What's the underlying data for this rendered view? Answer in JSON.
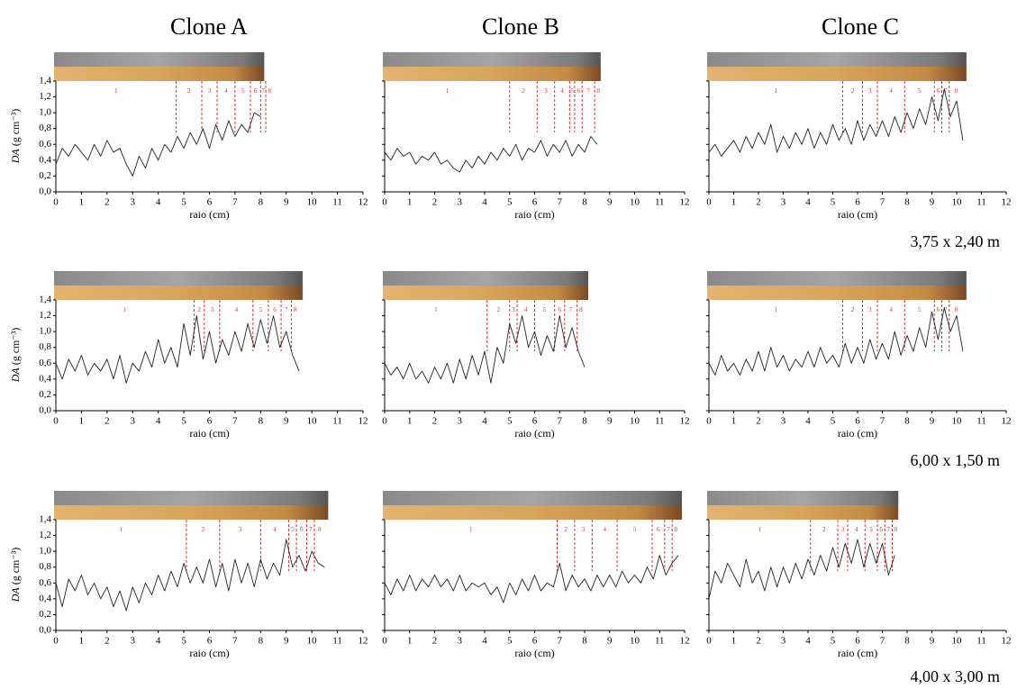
{
  "column_titles": [
    "Clone A",
    "Clone B",
    "Clone C"
  ],
  "row_labels": [
    "3,75 x 2,40 m",
    "6,00 x 1,50 m",
    "4,00 x 3,00 m"
  ],
  "chart_data": [
    {
      "type": "line",
      "xlabel": "raio (cm)",
      "ylabel_var": "DA",
      "ylabel_unit": "(g cm⁻³)",
      "color": "#222222",
      "ring_color": "#e03030",
      "xlim": [
        0,
        12
      ],
      "ylim": [
        0,
        1.4
      ],
      "xticks": [
        0,
        1,
        2,
        3,
        4,
        5,
        6,
        7,
        8,
        9,
        10,
        11,
        12
      ],
      "yticks": [
        {
          "value": 0,
          "label": "0,0"
        },
        {
          "value": 0.2,
          "label": "0,2"
        },
        {
          "value": 0.4,
          "label": "0,4"
        },
        {
          "value": 0.6,
          "label": "0,6"
        },
        {
          "value": 0.8,
          "label": "0,8"
        },
        {
          "value": 1,
          "label": "1,0"
        },
        {
          "value": 1.2,
          "label": "1,2"
        },
        {
          "value": 1.4,
          "label": "1,4"
        }
      ],
      "x": [
        0,
        0.25,
        0.5,
        0.75,
        1,
        1.25,
        1.5,
        1.75,
        2,
        2.25,
        2.5,
        2.75,
        3,
        3.25,
        3.5,
        3.75,
        4,
        4.25,
        4.5,
        4.75,
        5,
        5.25,
        5.5,
        5.75,
        6,
        6.25,
        6.5,
        6.75,
        7,
        7.25,
        7.5,
        7.75,
        8
      ],
      "values": [
        0.35,
        0.55,
        0.45,
        0.6,
        0.5,
        0.4,
        0.6,
        0.45,
        0.65,
        0.5,
        0.55,
        0.35,
        0.2,
        0.45,
        0.3,
        0.55,
        0.4,
        0.6,
        0.5,
        0.7,
        0.55,
        0.75,
        0.6,
        0.8,
        0.55,
        0.85,
        0.65,
        0.9,
        0.7,
        0.85,
        0.75,
        1.0,
        0.95
      ],
      "ring_labels": [
        "1",
        "2",
        "3",
        "4",
        "5",
        "6",
        "7",
        "8"
      ],
      "ring_boundaries": [
        4.7,
        5.7,
        6.3,
        7.0,
        7.6,
        8.0,
        8.2
      ]
    },
    {
      "type": "line",
      "xlabel": "raio (cm)",
      "color": "#222222",
      "ring_color": "#e03030",
      "xlim": [
        0,
        12
      ],
      "ylim": [
        0,
        1.4
      ],
      "xticks": [
        0,
        1,
        2,
        3,
        4,
        5,
        6,
        7,
        8,
        9,
        10,
        11,
        12
      ],
      "yticks": [
        0,
        0.2,
        0.4,
        0.6,
        0.8,
        1,
        1.2,
        1.4
      ],
      "x": [
        0,
        0.25,
        0.5,
        0.75,
        1,
        1.25,
        1.5,
        1.75,
        2,
        2.25,
        2.5,
        2.75,
        3,
        3.25,
        3.5,
        3.75,
        4,
        4.25,
        4.5,
        4.75,
        5,
        5.25,
        5.5,
        5.75,
        6,
        6.25,
        6.5,
        6.75,
        7,
        7.25,
        7.5,
        7.75,
        8,
        8.25,
        8.5
      ],
      "values": [
        0.5,
        0.4,
        0.55,
        0.45,
        0.5,
        0.35,
        0.45,
        0.4,
        0.5,
        0.35,
        0.4,
        0.3,
        0.25,
        0.4,
        0.3,
        0.45,
        0.35,
        0.5,
        0.4,
        0.55,
        0.45,
        0.6,
        0.4,
        0.55,
        0.5,
        0.65,
        0.45,
        0.6,
        0.5,
        0.65,
        0.45,
        0.6,
        0.5,
        0.7,
        0.6
      ],
      "ring_labels": [
        "1",
        "2",
        "3",
        "4",
        "5",
        "6",
        "7",
        "8"
      ],
      "ring_boundaries": [
        5.0,
        6.1,
        6.8,
        7.4,
        7.6,
        7.9,
        8.4
      ]
    },
    {
      "type": "line",
      "xlabel": "raio (cm)",
      "color": "#222222",
      "ring_color": "#e03030",
      "xlim": [
        0,
        12
      ],
      "ylim": [
        0,
        1.4
      ],
      "xticks": [
        0,
        1,
        2,
        3,
        4,
        5,
        6,
        7,
        8,
        9,
        10,
        11,
        12
      ],
      "yticks": [
        0,
        0.2,
        0.4,
        0.6,
        0.8,
        1,
        1.2,
        1.4
      ],
      "x": [
        0,
        0.25,
        0.5,
        0.75,
        1,
        1.25,
        1.5,
        1.75,
        2,
        2.25,
        2.5,
        2.75,
        3,
        3.25,
        3.5,
        3.75,
        4,
        4.25,
        4.5,
        4.75,
        5,
        5.25,
        5.5,
        5.75,
        6,
        6.25,
        6.5,
        6.75,
        7,
        7.25,
        7.5,
        7.75,
        8,
        8.25,
        8.5,
        8.75,
        9,
        9.25,
        9.5,
        9.75,
        10,
        10.25
      ],
      "values": [
        0.5,
        0.6,
        0.45,
        0.55,
        0.65,
        0.5,
        0.7,
        0.55,
        0.75,
        0.6,
        0.85,
        0.5,
        0.7,
        0.55,
        0.75,
        0.6,
        0.8,
        0.55,
        0.75,
        0.6,
        0.85,
        0.65,
        0.8,
        0.6,
        0.9,
        0.65,
        0.85,
        0.7,
        0.9,
        0.7,
        0.95,
        0.75,
        1.0,
        0.8,
        1.05,
        0.85,
        1.2,
        0.9,
        1.3,
        0.95,
        1.15,
        0.65
      ],
      "ring_labels": [
        "1",
        "2",
        "3",
        "4",
        "5",
        "6",
        "7",
        "8"
      ],
      "ring_boundaries": [
        5.4,
        6.2,
        6.8,
        7.9,
        9.1,
        9.4,
        9.7
      ]
    },
    {
      "type": "line",
      "xlabel": "raio (cm)",
      "ylabel_var": "DA",
      "ylabel_unit": "(g cm⁻³)",
      "color": "#222222",
      "ring_color": "#e03030",
      "xlim": [
        0,
        12
      ],
      "ylim": [
        0,
        1.4
      ],
      "xticks": [
        0,
        1,
        2,
        3,
        4,
        5,
        6,
        7,
        8,
        9,
        10,
        11,
        12
      ],
      "yticks": [
        {
          "value": 0,
          "label": "0,0"
        },
        {
          "value": 0.2,
          "label": "0,2"
        },
        {
          "value": 0.4,
          "label": "0,4"
        },
        {
          "value": 0.6,
          "label": "0,6"
        },
        {
          "value": 0.8,
          "label": "0,8"
        },
        {
          "value": 1,
          "label": "1,0"
        },
        {
          "value": 1.2,
          "label": "1,2"
        },
        {
          "value": 1.4,
          "label": "1,4"
        }
      ],
      "x": [
        0,
        0.25,
        0.5,
        0.75,
        1,
        1.25,
        1.5,
        1.75,
        2,
        2.25,
        2.5,
        2.75,
        3,
        3.25,
        3.5,
        3.75,
        4,
        4.25,
        4.5,
        4.75,
        5,
        5.25,
        5.5,
        5.75,
        6,
        6.25,
        6.5,
        6.75,
        7,
        7.25,
        7.5,
        7.75,
        8,
        8.25,
        8.5,
        8.75,
        9,
        9.25,
        9.5
      ],
      "values": [
        0.6,
        0.4,
        0.65,
        0.5,
        0.7,
        0.45,
        0.6,
        0.5,
        0.65,
        0.4,
        0.7,
        0.35,
        0.6,
        0.5,
        0.75,
        0.55,
        0.9,
        0.6,
        0.8,
        0.55,
        1.1,
        0.7,
        1.2,
        0.65,
        1.0,
        0.6,
        0.9,
        0.7,
        1.0,
        0.75,
        1.1,
        0.8,
        1.15,
        0.85,
        1.2,
        0.8,
        1.0,
        0.7,
        0.5
      ],
      "ring_labels": [
        "1",
        "2",
        "3",
        "4",
        "5",
        "6",
        "7",
        "8"
      ],
      "ring_boundaries": [
        5.4,
        5.8,
        6.4,
        7.7,
        8.3,
        8.8,
        9.2
      ]
    },
    {
      "type": "line",
      "xlabel": "raio (cm)",
      "color": "#222222",
      "ring_color": "#e03030",
      "xlim": [
        0,
        12
      ],
      "ylim": [
        0,
        1.4
      ],
      "xticks": [
        0,
        1,
        2,
        3,
        4,
        5,
        6,
        7,
        8,
        9,
        10,
        11,
        12
      ],
      "yticks": [
        0,
        0.2,
        0.4,
        0.6,
        0.8,
        1,
        1.2,
        1.4
      ],
      "x": [
        0,
        0.25,
        0.5,
        0.75,
        1,
        1.25,
        1.5,
        1.75,
        2,
        2.25,
        2.5,
        2.75,
        3,
        3.25,
        3.5,
        3.75,
        4,
        4.25,
        4.5,
        4.75,
        5,
        5.25,
        5.5,
        5.75,
        6,
        6.25,
        6.5,
        6.75,
        7,
        7.25,
        7.5,
        7.75,
        8
      ],
      "values": [
        0.6,
        0.45,
        0.55,
        0.4,
        0.6,
        0.4,
        0.5,
        0.35,
        0.55,
        0.4,
        0.6,
        0.35,
        0.65,
        0.4,
        0.7,
        0.45,
        0.75,
        0.35,
        0.8,
        0.6,
        1.1,
        0.85,
        1.2,
        0.8,
        1.0,
        0.7,
        0.95,
        0.75,
        1.2,
        0.8,
        1.05,
        0.75,
        0.55
      ],
      "ring_labels": [
        "1",
        "2",
        "3",
        "4",
        "5",
        "6",
        "7",
        "8"
      ],
      "ring_boundaries": [
        4.1,
        5.0,
        5.3,
        6.0,
        6.8,
        7.2,
        7.7
      ]
    },
    {
      "type": "line",
      "xlabel": "raio (cm)",
      "color": "#222222",
      "ring_color": "#e03030",
      "xlim": [
        0,
        12
      ],
      "ylim": [
        0,
        1.4
      ],
      "xticks": [
        0,
        1,
        2,
        3,
        4,
        5,
        6,
        7,
        8,
        9,
        10,
        11,
        12
      ],
      "yticks": [
        0,
        0.2,
        0.4,
        0.6,
        0.8,
        1,
        1.2,
        1.4
      ],
      "x": [
        0,
        0.25,
        0.5,
        0.75,
        1,
        1.25,
        1.5,
        1.75,
        2,
        2.25,
        2.5,
        2.75,
        3,
        3.25,
        3.5,
        3.75,
        4,
        4.25,
        4.5,
        4.75,
        5,
        5.25,
        5.5,
        5.75,
        6,
        6.25,
        6.5,
        6.75,
        7,
        7.25,
        7.5,
        7.75,
        8,
        8.25,
        8.5,
        8.75,
        9,
        9.25,
        9.5,
        9.75,
        10,
        10.25
      ],
      "values": [
        0.6,
        0.45,
        0.7,
        0.5,
        0.6,
        0.45,
        0.65,
        0.5,
        0.75,
        0.5,
        0.8,
        0.55,
        0.7,
        0.5,
        0.65,
        0.55,
        0.75,
        0.55,
        0.8,
        0.6,
        0.7,
        0.55,
        0.85,
        0.6,
        0.8,
        0.6,
        0.9,
        0.65,
        0.85,
        0.65,
        1.0,
        0.7,
        0.95,
        0.75,
        1.05,
        0.8,
        1.25,
        0.9,
        1.3,
        1.0,
        1.2,
        0.75
      ],
      "ring_labels": [
        "1",
        "2",
        "3",
        "4",
        "5",
        "6",
        "7",
        "8"
      ],
      "ring_boundaries": [
        5.4,
        6.2,
        6.8,
        7.9,
        9.1,
        9.4,
        9.7
      ]
    },
    {
      "type": "line",
      "xlabel": "raio (cm)",
      "ylabel_var": "DA",
      "ylabel_unit": "(g cm⁻³)",
      "color": "#222222",
      "ring_color": "#e03030",
      "xlim": [
        0,
        12
      ],
      "ylim": [
        0,
        1.4
      ],
      "xticks": [
        0,
        1,
        2,
        3,
        4,
        5,
        6,
        7,
        8,
        9,
        10,
        11,
        12
      ],
      "yticks": [
        {
          "value": 0,
          "label": "0,0"
        },
        {
          "value": 0.2,
          "label": "0,2"
        },
        {
          "value": 0.4,
          "label": "0,4"
        },
        {
          "value": 0.6,
          "label": "0,6"
        },
        {
          "value": 0.8,
          "label": "0,8"
        },
        {
          "value": 1,
          "label": "1,0"
        },
        {
          "value": 1.2,
          "label": "1,2"
        },
        {
          "value": 1.4,
          "label": "1,4"
        }
      ],
      "x": [
        0,
        0.25,
        0.5,
        0.75,
        1,
        1.25,
        1.5,
        1.75,
        2,
        2.25,
        2.5,
        2.75,
        3,
        3.25,
        3.5,
        3.75,
        4,
        4.25,
        4.5,
        4.75,
        5,
        5.25,
        5.5,
        5.75,
        6,
        6.25,
        6.5,
        6.75,
        7,
        7.25,
        7.5,
        7.75,
        8,
        8.25,
        8.5,
        8.75,
        9,
        9.25,
        9.5,
        9.75,
        10,
        10.25,
        10.5
      ],
      "values": [
        0.6,
        0.3,
        0.65,
        0.5,
        0.7,
        0.45,
        0.6,
        0.4,
        0.55,
        0.3,
        0.5,
        0.25,
        0.55,
        0.35,
        0.6,
        0.45,
        0.7,
        0.5,
        0.75,
        0.55,
        0.85,
        0.6,
        0.8,
        0.6,
        0.9,
        0.55,
        0.85,
        0.5,
        0.9,
        0.6,
        0.85,
        0.55,
        0.9,
        0.65,
        0.85,
        0.7,
        1.15,
        0.8,
        0.95,
        0.75,
        1.0,
        0.85,
        0.8
      ],
      "ring_labels": [
        "1",
        "2",
        "3",
        "4",
        "5",
        "6",
        "7",
        "8"
      ],
      "ring_boundaries": [
        5.1,
        6.4,
        8.0,
        9.1,
        9.4,
        9.8,
        10.1
      ]
    },
    {
      "type": "line",
      "xlabel": "raio (cm)",
      "color": "#222222",
      "ring_color": "#e03030",
      "xlim": [
        0,
        12
      ],
      "ylim": [
        0,
        1.4
      ],
      "xticks": [
        0,
        1,
        2,
        3,
        4,
        5,
        6,
        7,
        8,
        9,
        10,
        11,
        12
      ],
      "yticks": [
        0,
        0.2,
        0.4,
        0.6,
        0.8,
        1,
        1.2,
        1.4
      ],
      "x": [
        0,
        0.25,
        0.5,
        0.75,
        1,
        1.25,
        1.5,
        1.75,
        2,
        2.25,
        2.5,
        2.75,
        3,
        3.25,
        3.5,
        3.75,
        4,
        4.25,
        4.5,
        4.75,
        5,
        5.25,
        5.5,
        5.75,
        6,
        6.25,
        6.5,
        6.75,
        7,
        7.25,
        7.5,
        7.75,
        8,
        8.25,
        8.5,
        8.75,
        9,
        9.25,
        9.5,
        9.75,
        10,
        10.25,
        10.5,
        10.75,
        11,
        11.25,
        11.5,
        11.75
      ],
      "values": [
        0.6,
        0.45,
        0.65,
        0.5,
        0.7,
        0.5,
        0.65,
        0.55,
        0.7,
        0.55,
        0.65,
        0.5,
        0.7,
        0.5,
        0.6,
        0.55,
        0.6,
        0.45,
        0.55,
        0.35,
        0.6,
        0.45,
        0.65,
        0.5,
        0.7,
        0.5,
        0.6,
        0.55,
        0.85,
        0.5,
        0.7,
        0.55,
        0.65,
        0.5,
        0.7,
        0.55,
        0.7,
        0.55,
        0.75,
        0.6,
        0.7,
        0.6,
        0.8,
        0.65,
        0.95,
        0.7,
        0.85,
        0.95
      ],
      "ring_labels": [
        "1",
        "2",
        "3",
        "4",
        "5",
        "6",
        "7",
        "8"
      ],
      "ring_boundaries": [
        6.9,
        7.6,
        8.3,
        9.3,
        10.7,
        11.2,
        11.5
      ]
    },
    {
      "type": "line",
      "xlabel": "raio (cm)",
      "color": "#222222",
      "ring_color": "#e03030",
      "xlim": [
        0,
        12
      ],
      "ylim": [
        0,
        1.4
      ],
      "xticks": [
        0,
        1,
        2,
        3,
        4,
        5,
        6,
        7,
        8,
        9,
        10,
        11,
        12
      ],
      "yticks": [
        0,
        0.2,
        0.4,
        0.6,
        0.8,
        1,
        1.2,
        1.4
      ],
      "x": [
        0,
        0.25,
        0.5,
        0.75,
        1,
        1.25,
        1.5,
        1.75,
        2,
        2.25,
        2.5,
        2.75,
        3,
        3.25,
        3.5,
        3.75,
        4,
        4.25,
        4.5,
        4.75,
        5,
        5.25,
        5.5,
        5.75,
        6,
        6.25,
        6.5,
        6.75,
        7,
        7.25,
        7.5
      ],
      "values": [
        0.4,
        0.75,
        0.6,
        0.85,
        0.7,
        0.55,
        0.9,
        0.6,
        0.75,
        0.5,
        0.8,
        0.55,
        0.8,
        0.6,
        0.85,
        0.65,
        0.9,
        0.7,
        0.95,
        0.75,
        1.05,
        0.8,
        1.1,
        0.85,
        1.15,
        0.8,
        1.1,
        0.85,
        1.1,
        0.7,
        0.95
      ],
      "ring_labels": [
        "1",
        "2",
        "3",
        "4",
        "5",
        "6",
        "7",
        "8"
      ],
      "ring_boundaries": [
        4.1,
        5.2,
        5.6,
        6.3,
        6.8,
        7.1,
        7.4
      ]
    }
  ]
}
